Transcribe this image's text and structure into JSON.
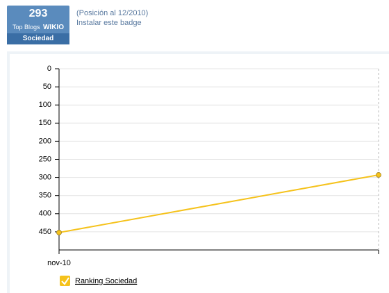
{
  "badge": {
    "rank": "293",
    "label": "Top Blogs",
    "brand": "WIKIO",
    "category": "Sociedad"
  },
  "header": {
    "position": "(Posición al 12/2010)",
    "install": "Instalar este badge"
  },
  "chart_data": {
    "type": "line",
    "categories": [
      "nov-10",
      null
    ],
    "series": [
      {
        "name": "Ranking Sociedad",
        "color": "#f5c21b",
        "values": [
          452,
          293
        ]
      }
    ],
    "ylim": [
      0,
      500
    ],
    "y_reversed": true,
    "yticks": [
      0,
      50,
      100,
      150,
      200,
      250,
      300,
      350,
      400,
      450
    ],
    "grid": true,
    "legend": "bottom-left"
  }
}
